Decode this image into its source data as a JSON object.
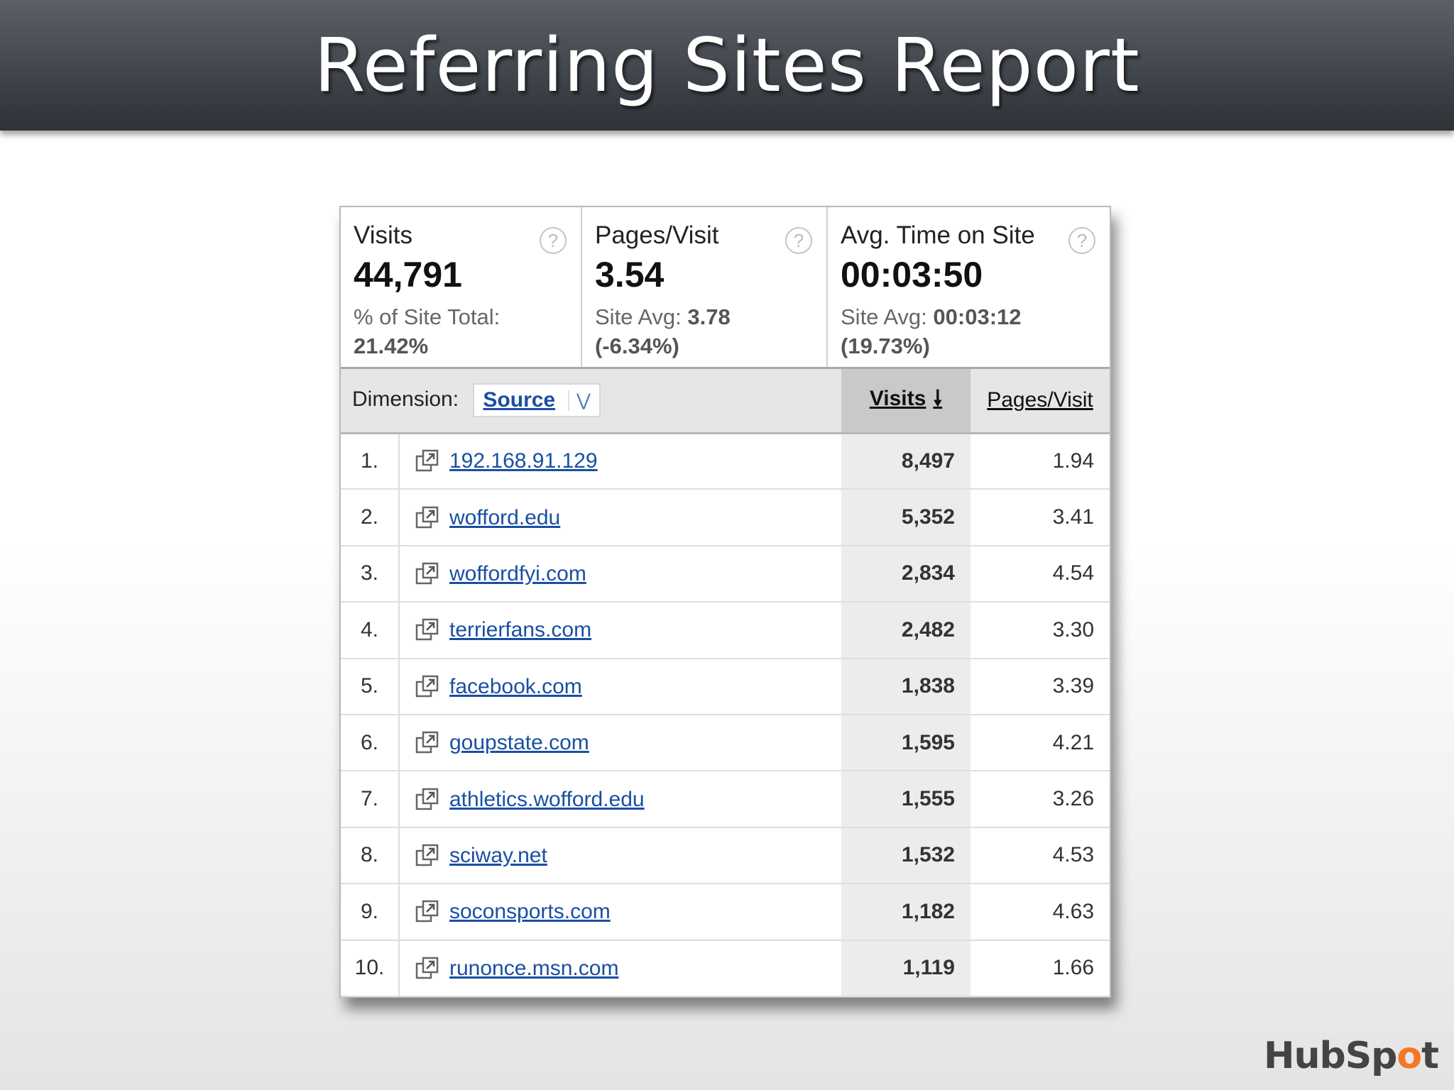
{
  "slide": {
    "title": "Referring Sites Report"
  },
  "scorecards": [
    {
      "label": "Visits",
      "value": "44,791",
      "sub1": "% of Site Total:",
      "sub2": "21.42%",
      "sub2_class": ""
    },
    {
      "label": "Pages/Visit",
      "value": "3.54",
      "sub1_prefix": "Site Avg: ",
      "sub1_bold": "3.78",
      "sub2": "(-6.34%)",
      "sub2_class": "neg"
    },
    {
      "label": "Avg. Time on Site",
      "value": "00:03:50",
      "sub1_prefix": "Site Avg: ",
      "sub1_bold": "00:03:12",
      "sub2": "(19.73%)",
      "sub2_class": "pos"
    }
  ],
  "help_glyph": "?",
  "table": {
    "dimension_label": "Dimension:",
    "dimension_value": "Source",
    "columns": {
      "visits": "Visits",
      "pages_visit": "Pages/Visit"
    },
    "rows": [
      {
        "rank": "1.",
        "source": "192.168.91.129",
        "visits": "8,497",
        "ppv": "1.94"
      },
      {
        "rank": "2.",
        "source": "wofford.edu",
        "visits": "5,352",
        "ppv": "3.41"
      },
      {
        "rank": "3.",
        "source": "woffordfyi.com",
        "visits": "2,834",
        "ppv": "4.54"
      },
      {
        "rank": "4.",
        "source": "terrierfans.com",
        "visits": "2,482",
        "ppv": "3.30"
      },
      {
        "rank": "5.",
        "source": "facebook.com",
        "visits": "1,838",
        "ppv": "3.39"
      },
      {
        "rank": "6.",
        "source": "goupstate.com",
        "visits": "1,595",
        "ppv": "4.21"
      },
      {
        "rank": "7.",
        "source": "athletics.wofford.edu",
        "visits": "1,555",
        "ppv": "3.26"
      },
      {
        "rank": "8.",
        "source": "sciway.net",
        "visits": "1,532",
        "ppv": "4.53"
      },
      {
        "rank": "9.",
        "source": "soconsports.com",
        "visits": "1,182",
        "ppv": "4.63"
      },
      {
        "rank": "10.",
        "source": "runonce.msn.com",
        "visits": "1,119",
        "ppv": "1.66"
      }
    ]
  },
  "logo": {
    "pre": "HubSp",
    "o": "o",
    "post": "t"
  },
  "icons": {
    "external": "external-link-icon",
    "help": "help-icon",
    "sort": "sort-down-arrow-icon",
    "chevron": "chevron-down-icon"
  }
}
